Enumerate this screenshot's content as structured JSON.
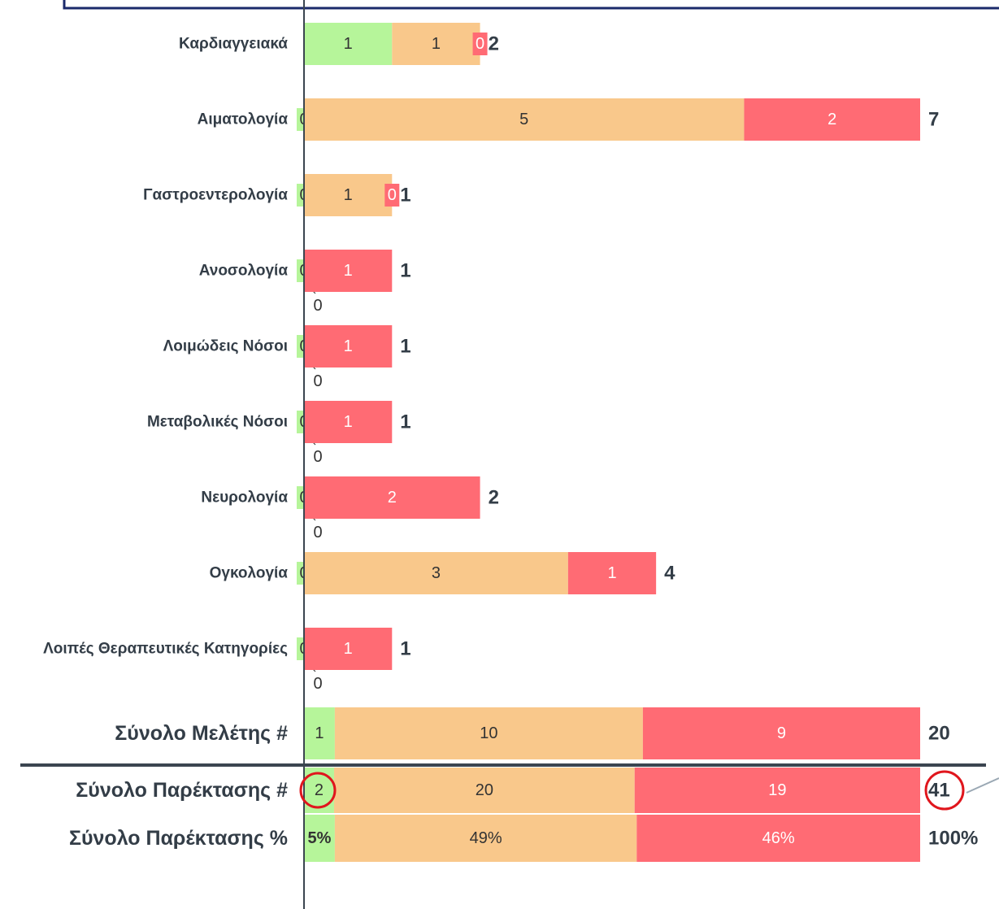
{
  "chart_data": [
    {
      "type": "bar",
      "orientation": "horizontal",
      "stacked": true,
      "categories": [
        "Καρδιαγγειακά",
        "Αιματολογία",
        "Γαστροεντερολογία",
        "Ανοσολογία",
        "Λοιμώδεις Νόσοι",
        "Μεταβολικές Νόσοι",
        "Νευρολογία",
        "Ογκολογία",
        "Λοιπές Θεραπευτικές Κατηγορίες"
      ],
      "series": [
        {
          "color": "#b6f59a",
          "values": [
            1,
            0,
            0,
            0,
            0,
            0,
            0,
            0,
            0
          ]
        },
        {
          "color": "#f9c88b",
          "values": [
            1,
            5,
            1,
            0,
            0,
            0,
            0,
            3,
            0
          ]
        },
        {
          "color": "#ff6b74",
          "values": [
            0,
            2,
            0,
            1,
            1,
            1,
            2,
            1,
            1
          ]
        }
      ],
      "totals": [
        2,
        7,
        1,
        1,
        1,
        1,
        2,
        4,
        1
      ],
      "xlim": [
        0,
        7
      ]
    },
    {
      "type": "bar",
      "orientation": "horizontal",
      "stacked": true,
      "categories": [
        "Σύνολο Μελέτης #"
      ],
      "series": [
        {
          "color": "#b6f59a",
          "values": [
            1
          ]
        },
        {
          "color": "#f9c88b",
          "values": [
            10
          ]
        },
        {
          "color": "#ff6b74",
          "values": [
            9
          ]
        }
      ],
      "totals": [
        20
      ],
      "xlim": [
        0,
        20
      ]
    },
    {
      "type": "bar",
      "orientation": "horizontal",
      "stacked": true,
      "categories": [
        "Σύνολο Παρέκτασης #"
      ],
      "series": [
        {
          "color": "#b6f59a",
          "values": [
            2
          ]
        },
        {
          "color": "#f9c88b",
          "values": [
            20
          ]
        },
        {
          "color": "#ff6b74",
          "values": [
            19
          ]
        }
      ],
      "totals": [
        41
      ],
      "xlim": [
        0,
        41
      ]
    },
    {
      "type": "bar",
      "orientation": "horizontal",
      "stacked": true,
      "categories": [
        "Σύνολο Παρέκτασης %"
      ],
      "series": [
        {
          "color": "#b6f59a",
          "values": [
            5
          ],
          "value_labels": [
            "5%"
          ]
        },
        {
          "color": "#f9c88b",
          "values": [
            49
          ],
          "value_labels": [
            "49%"
          ]
        },
        {
          "color": "#ff6b74",
          "values": [
            46
          ],
          "value_labels": [
            "46%"
          ]
        }
      ],
      "totals": [
        100
      ],
      "total_labels": [
        "100%"
      ],
      "xlim": [
        0,
        100
      ]
    }
  ]
}
